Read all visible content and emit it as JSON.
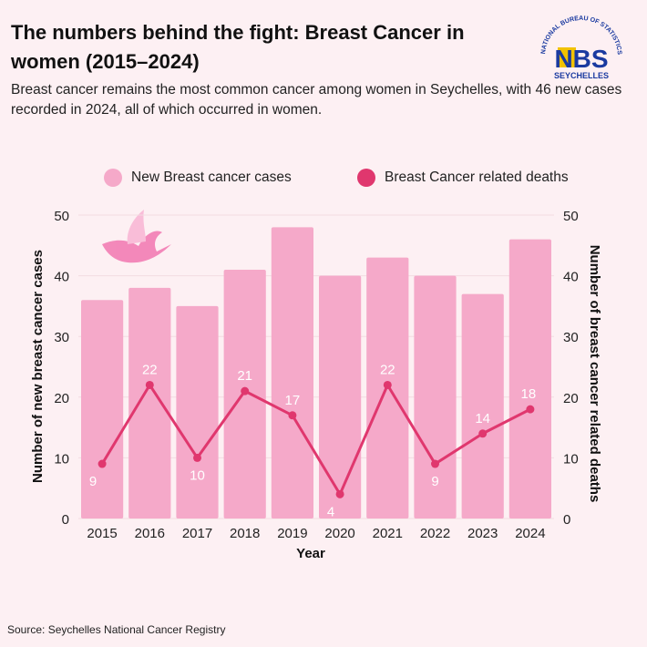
{
  "header": {
    "title": "The numbers behind the fight: Breast Cancer in women (2015–2024)",
    "subtitle": "Breast cancer remains the most common cancer among women in Seychelles, with 46 new cases recorded in 2024, all of which occurred in women."
  },
  "logo": {
    "text_top": "NATIONAL BUREAU OF STATISTICS",
    "text_main": "NBS",
    "text_bottom": "SEYCHELLES"
  },
  "source": "Source: Seychelles National Cancer Registry",
  "colors": {
    "bar": "#f5a9c9",
    "line": "#e0376e",
    "background": "#fdf0f3"
  },
  "chart_data": {
    "type": "bar+line",
    "categories": [
      "2015",
      "2016",
      "2017",
      "2018",
      "2019",
      "2020",
      "2021",
      "2022",
      "2023",
      "2024"
    ],
    "series": [
      {
        "name": "New Breast cancer cases",
        "type": "bar",
        "axis": "left",
        "values": [
          36,
          38,
          35,
          41,
          48,
          40,
          43,
          40,
          37,
          46
        ]
      },
      {
        "name": "Breast Cancer related deaths",
        "type": "line",
        "axis": "right",
        "values": [
          9,
          22,
          10,
          21,
          17,
          4,
          22,
          9,
          14,
          18
        ],
        "data_labels": true
      }
    ],
    "xlabel": "Year",
    "ylabel": "Number of new breast cancer cases",
    "y2label": "Number of breast cancer related deaths",
    "ylim": [
      0,
      50
    ],
    "y2lim": [
      0,
      50
    ],
    "yticks": [
      0,
      10,
      20,
      30,
      40,
      50
    ],
    "grid": true,
    "legend_position": "top"
  }
}
